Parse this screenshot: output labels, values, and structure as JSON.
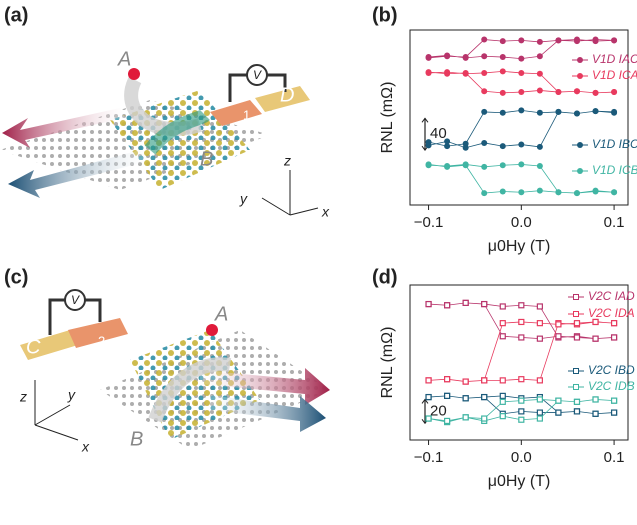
{
  "panels": [
    {
      "label": "(a)",
      "texts": [
        "A",
        "B",
        "D",
        "1",
        "V",
        "z",
        "y",
        "x"
      ]
    },
    {
      "label": "(c)",
      "texts": [
        "A",
        "B",
        "C",
        "2",
        "V",
        "z",
        "y",
        "x"
      ]
    }
  ],
  "chart_data": [
    {
      "type": "line",
      "panel_label": "(b)",
      "y_label": "RNL (mΩ)",
      "x_label": "μ0Hy (T)",
      "marker": "filled-circle",
      "xlim": [
        -0.12,
        0.115
      ],
      "xticks": [
        {
          "value": -0.1,
          "label": "−0.1"
        },
        {
          "value": 0,
          "label": "0.0"
        },
        0.1
      ],
      "ylim": [
        0,
        220
      ],
      "scale_bar": 40,
      "x": [
        -0.1,
        -0.08,
        -0.06,
        -0.04,
        -0.02,
        0,
        0.02,
        0.04,
        0.06,
        0.08,
        0.1,
        0.1,
        0.08,
        0.06,
        0.04,
        0.02,
        0,
        -0.02,
        -0.04,
        -0.06,
        -0.08,
        -0.1
      ],
      "series": [
        {
          "name": "V1D IAC",
          "color": "#b8346b",
          "values": [
            186,
            188,
            185,
            187,
            186,
            184,
            187,
            207,
            206,
            208,
            207,
            207,
            206,
            208,
            207,
            205,
            207,
            206,
            208,
            186,
            187,
            185
          ]
        },
        {
          "name": "V1D ICA",
          "color": "#e83a5e",
          "values": [
            166,
            167,
            165,
            166,
            168,
            166,
            165,
            142,
            143,
            141,
            142,
            142,
            141,
            143,
            142,
            144,
            142,
            141,
            143,
            166,
            165,
            167
          ]
        },
        {
          "name": "V1D IBC",
          "color": "#1b5a7a",
          "values": [
            75,
            80,
            72,
            78,
            74,
            76,
            73,
            117,
            115,
            118,
            116,
            117,
            118,
            115,
            117,
            116,
            119,
            116,
            117,
            77,
            74,
            79
          ]
        },
        {
          "name": "V1D ICB",
          "color": "#40b5a3",
          "values": [
            50,
            49,
            51,
            48,
            50,
            51,
            49,
            16,
            15,
            18,
            16,
            16,
            17,
            15,
            16,
            18,
            16,
            17,
            15,
            50,
            48,
            51
          ]
        }
      ]
    },
    {
      "type": "line",
      "panel_label": "(d)",
      "y_label": "RNL (mΩ)",
      "x_label": "μ0Hy (T)",
      "marker": "open-square",
      "xlim": [
        -0.12,
        0.115
      ],
      "xticks": [
        {
          "value": -0.1,
          "label": "−0.1"
        },
        {
          "value": 0,
          "label": "0.0"
        },
        0.1
      ],
      "ylim": [
        0,
        130
      ],
      "scale_bar": 20,
      "x": [
        -0.1,
        -0.08,
        -0.06,
        -0.04,
        -0.02,
        0,
        0.02,
        0.04,
        0.06,
        0.08,
        0.1,
        0.1,
        0.08,
        0.06,
        0.04,
        0.02,
        0,
        -0.02,
        -0.04,
        -0.06,
        -0.08,
        -0.1
      ],
      "series": [
        {
          "name": "V2C IAD",
          "color": "#b8346b",
          "values": [
            114,
            113,
            115,
            114,
            112,
            113,
            112,
            86,
            87,
            85,
            86,
            86,
            85,
            86,
            87,
            85,
            86,
            87,
            114,
            115,
            113,
            114
          ]
        },
        {
          "name": "V2C IDA",
          "color": "#e83a5e",
          "values": [
            50,
            51,
            49,
            50,
            50,
            51,
            50,
            98,
            97,
            99,
            98,
            98,
            99,
            98,
            97,
            98,
            99,
            98,
            50,
            49,
            51,
            50
          ]
        },
        {
          "name": "V2C IBD",
          "color": "#1b5a7a",
          "values": [
            36,
            37,
            35,
            36,
            37,
            35,
            36,
            23,
            24,
            22,
            23,
            23,
            22,
            24,
            23,
            23,
            24,
            22,
            36,
            35,
            37,
            36
          ]
        },
        {
          "name": "V2C IDB",
          "color": "#40b5a3",
          "values": [
            18,
            15,
            19,
            16,
            20,
            17,
            18,
            33,
            32,
            34,
            33,
            33,
            34,
            32,
            33,
            34,
            33,
            32,
            18,
            19,
            16,
            18
          ]
        }
      ]
    }
  ]
}
